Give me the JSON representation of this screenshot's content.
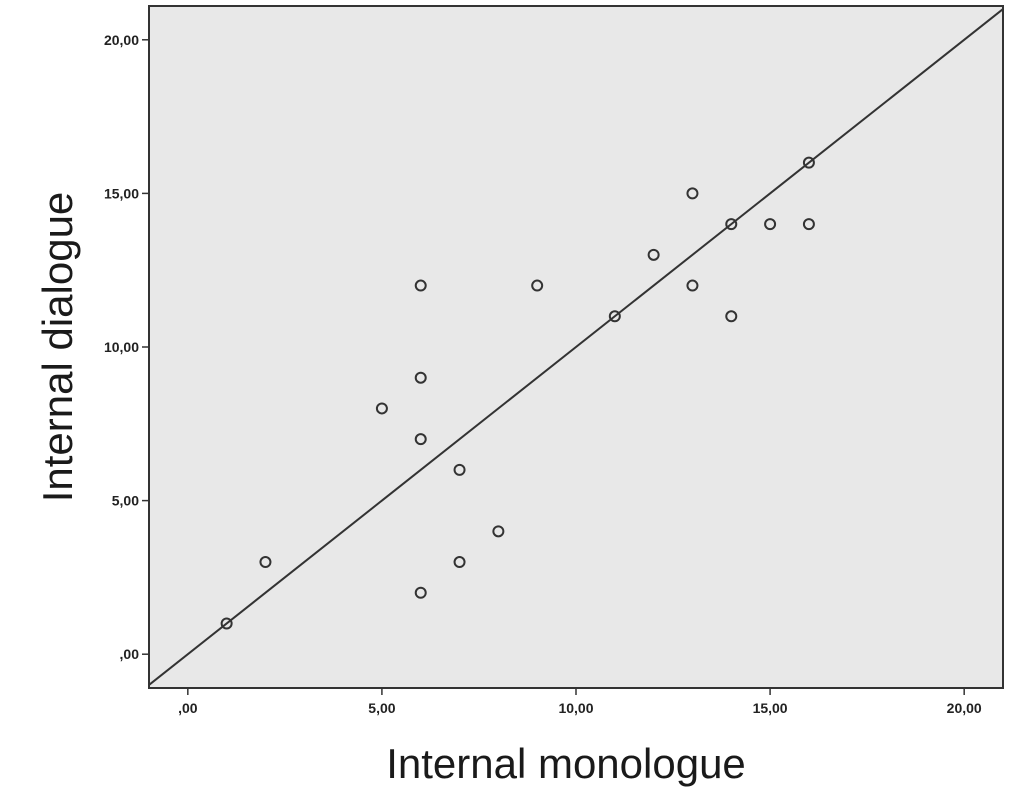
{
  "chart_data": {
    "type": "scatter",
    "xlabel": "Internal monologue",
    "ylabel": "Internal dialogue",
    "xlim": [
      -1.0,
      21.0
    ],
    "ylim": [
      -1.1,
      21.1
    ],
    "x_ticks": [
      0,
      5,
      10,
      15,
      20
    ],
    "x_tick_labels": [
      ",00",
      "5,00",
      "10,00",
      "15,00",
      "20,00"
    ],
    "y_ticks": [
      0,
      5,
      10,
      15,
      20
    ],
    "y_tick_labels": [
      ",00",
      "5,00",
      "10,00",
      "15,00",
      "20,00"
    ],
    "points": [
      {
        "x": 1,
        "y": 1
      },
      {
        "x": 2,
        "y": 3
      },
      {
        "x": 5,
        "y": 8
      },
      {
        "x": 6,
        "y": 12
      },
      {
        "x": 6,
        "y": 9
      },
      {
        "x": 6,
        "y": 7
      },
      {
        "x": 6,
        "y": 2
      },
      {
        "x": 7,
        "y": 6
      },
      {
        "x": 7,
        "y": 3
      },
      {
        "x": 8,
        "y": 4
      },
      {
        "x": 9,
        "y": 12
      },
      {
        "x": 11,
        "y": 11
      },
      {
        "x": 12,
        "y": 13
      },
      {
        "x": 13,
        "y": 15
      },
      {
        "x": 13,
        "y": 12
      },
      {
        "x": 14,
        "y": 14
      },
      {
        "x": 14,
        "y": 11
      },
      {
        "x": 15,
        "y": 14
      },
      {
        "x": 16,
        "y": 16
      },
      {
        "x": 16,
        "y": 14
      }
    ],
    "reference_line": "y = x",
    "background_color": "#e8e8e8",
    "marker_color": "#333333",
    "line_color": "#333333"
  }
}
